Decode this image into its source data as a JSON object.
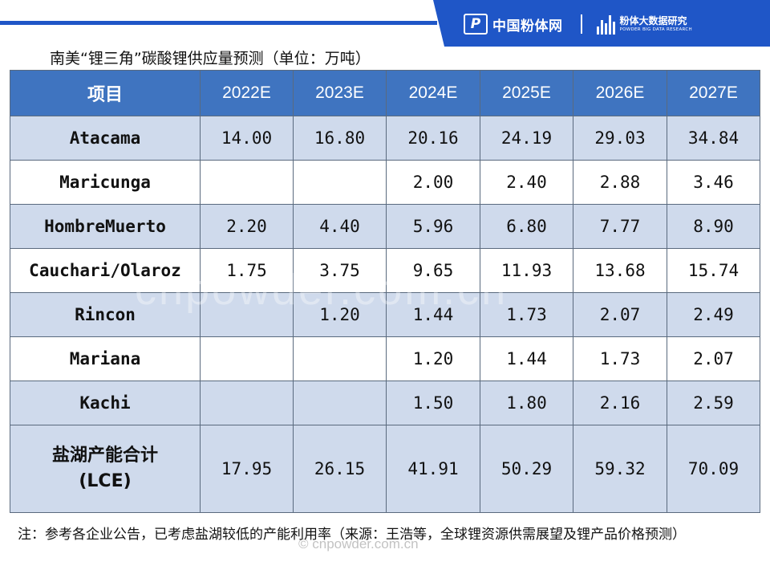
{
  "header": {
    "logo_mark": "P",
    "logo_cn": "中国粉体网",
    "brand_cn": "粉体大数据研究",
    "brand_en": "POWDER BIG DATA RESEARCH"
  },
  "title": "南美“锂三角”碳酸锂供应量预测（单位：万吨）",
  "table": {
    "headers": [
      "项目",
      "2022E",
      "2023E",
      "2024E",
      "2025E",
      "2026E",
      "2027E"
    ],
    "rows": [
      {
        "label": "Atacama",
        "values": [
          "14.00",
          "16.80",
          "20.16",
          "24.19",
          "29.03",
          "34.84"
        ]
      },
      {
        "label": "Maricunga",
        "values": [
          "",
          "",
          "2.00",
          "2.40",
          "2.88",
          "3.46"
        ]
      },
      {
        "label": "HombreMuerto",
        "values": [
          "2.20",
          "4.40",
          "5.96",
          "6.80",
          "7.77",
          "8.90"
        ]
      },
      {
        "label": "Cauchari/Olaroz",
        "values": [
          "1.75",
          "3.75",
          "9.65",
          "11.93",
          "13.68",
          "15.74"
        ]
      },
      {
        "label": "Rincon",
        "values": [
          "",
          "1.20",
          "1.44",
          "1.73",
          "2.07",
          "2.49"
        ]
      },
      {
        "label": "Mariana",
        "values": [
          "",
          "",
          "1.20",
          "1.44",
          "1.73",
          "2.07"
        ]
      },
      {
        "label": "Kachi",
        "values": [
          "",
          "",
          "1.50",
          "1.80",
          "2.16",
          "2.59"
        ]
      }
    ],
    "total": {
      "label_line1": "盐湖产能合计",
      "label_line2": "(LCE)",
      "values": [
        "17.95",
        "26.15",
        "41.91",
        "50.29",
        "59.32",
        "70.09"
      ]
    }
  },
  "watermark_center": "cnpowder.com.cn",
  "note": "注：参考各企业公告，已考虑盐湖较低的产能利用率（来源：王浩等，全球锂资源供需展望及锂产品价格预测）",
  "watermark_bottom": "© cnpowder.com.cn",
  "colors": {
    "brand_blue": "#1f56c7",
    "header_row": "#3f74c0",
    "band_row": "#cfdaec"
  }
}
